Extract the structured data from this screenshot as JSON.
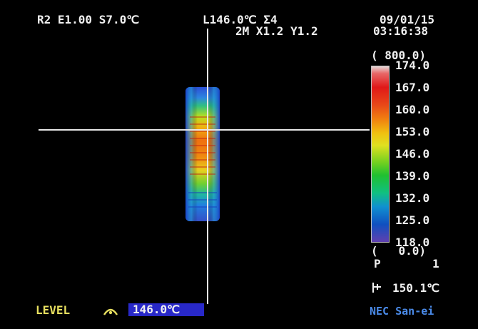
{
  "header": {
    "line1_left": "R2 E1.00 S7.0℃",
    "line1_mid": "L146.0℃ Σ4",
    "line2_mid": "2M X1.2 Y1.2",
    "date": "09/01/15",
    "time": "03:16:38"
  },
  "scale": {
    "range_label": "( 800.0)",
    "ticks": [
      "174.0",
      "167.0",
      "160.0",
      "153.0",
      "146.0",
      "139.0",
      "132.0",
      "125.0",
      "118.0"
    ],
    "bottom_range_label": "(   0.0)",
    "p_label": "P",
    "p_value": "1"
  },
  "cursor_temp": {
    "icon": "cursor-temp-icon",
    "value": "150.1℃"
  },
  "footer": {
    "level_label": "LEVEL",
    "level_icon": "level-arc-icon",
    "level_value": "146.0℃",
    "brand": "NEC San-ei"
  },
  "colors": {
    "background": "#000000",
    "level_box": "#2828c8",
    "level_text": "#e8e060",
    "brand": "#4a8ae8"
  }
}
